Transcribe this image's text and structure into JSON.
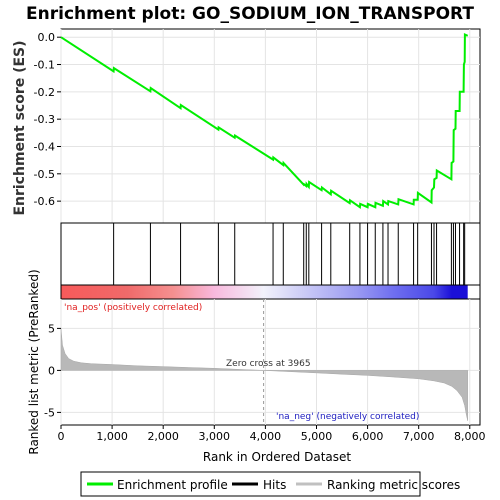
{
  "chart_data": {
    "type": "line",
    "title": "Enrichment plot: GO_SODIUM_ION_TRANSPORT",
    "ylabel_top": "Enrichment score (ES)",
    "ylabel_bottom": "Ranked list metric (PreRanked)",
    "xlabel": "Rank in Ordered Dataset",
    "xlim": [
      0,
      8200
    ],
    "xticks": [
      0,
      1000,
      2000,
      3000,
      4000,
      5000,
      6000,
      7000,
      8000
    ],
    "xtick_labels": [
      "0",
      "1,000",
      "2,000",
      "3,000",
      "4,000",
      "5,000",
      "6,000",
      "7,000",
      "8,000"
    ],
    "es_ylim": [
      -0.68,
      0.03
    ],
    "es_yticks": [
      0.0,
      -0.1,
      -0.2,
      -0.3,
      -0.4,
      -0.5,
      -0.6
    ],
    "es_ytick_labels": [
      "0.0",
      "-0.1",
      "-0.2",
      "-0.3",
      "-0.4",
      "-0.5",
      "-0.6"
    ],
    "metric_ylim": [
      -6.5,
      8.5
    ],
    "metric_yticks": [
      5,
      0,
      -5
    ],
    "metric_ytick_labels": [
      "5",
      "0",
      "-5"
    ],
    "zero_cross_label": "Zero cross at 3965",
    "zero_cross": 3965,
    "pos_label": "'na_pos' (positively correlated)",
    "neg_label": "'na_neg' (negatively correlated)",
    "total_ranks": 7960,
    "series": [
      {
        "name": "Enrichment profile",
        "color": "#00ee00",
        "x": [
          0,
          1030,
          1035,
          1750,
          1755,
          2340,
          2345,
          3080,
          3085,
          3400,
          3405,
          4150,
          4155,
          4350,
          4355,
          4750,
          4755,
          4800,
          4805,
          4850,
          4855,
          5100,
          5105,
          5280,
          5285,
          5650,
          5655,
          5850,
          5855,
          6000,
          6005,
          6150,
          6155,
          6300,
          6305,
          6400,
          6405,
          6600,
          6605,
          6900,
          6905,
          6980,
          6985,
          7250,
          7255,
          7300,
          7305,
          7350,
          7355,
          7640,
          7645,
          7680,
          7685,
          7720,
          7725,
          7800,
          7805,
          7880,
          7885,
          7900,
          7905,
          7960
        ],
        "y": [
          0.0,
          -0.125,
          -0.113,
          -0.198,
          -0.186,
          -0.26,
          -0.248,
          -0.338,
          -0.33,
          -0.368,
          -0.36,
          -0.448,
          -0.44,
          -0.468,
          -0.46,
          -0.54,
          -0.538,
          -0.545,
          -0.537,
          -0.548,
          -0.53,
          -0.56,
          -0.55,
          -0.575,
          -0.562,
          -0.607,
          -0.597,
          -0.622,
          -0.61,
          -0.622,
          -0.61,
          -0.622,
          -0.606,
          -0.617,
          -0.6,
          -0.612,
          -0.6,
          -0.612,
          -0.593,
          -0.612,
          -0.595,
          -0.595,
          -0.57,
          -0.605,
          -0.56,
          -0.55,
          -0.52,
          -0.515,
          -0.488,
          -0.52,
          -0.46,
          -0.455,
          -0.34,
          -0.335,
          -0.27,
          -0.27,
          -0.2,
          -0.2,
          -0.1,
          -0.09,
          0.01,
          0.005
        ]
      }
    ],
    "hits": [
      1030,
      1750,
      2340,
      3080,
      3400,
      4150,
      4350,
      4750,
      4800,
      4850,
      5100,
      5280,
      5650,
      5850,
      6000,
      6150,
      6300,
      6400,
      6600,
      6900,
      6980,
      7250,
      7300,
      7350,
      7640,
      7680,
      7720,
      7800,
      7880,
      7900
    ],
    "metric_profile": {
      "x": [
        0,
        30,
        80,
        150,
        250,
        400,
        600,
        1000,
        1500,
        2000,
        2500,
        3000,
        3500,
        3965,
        4500,
        5000,
        5500,
        6000,
        6500,
        7000,
        7300,
        7500,
        7650,
        7750,
        7850,
        7900,
        7930,
        7960
      ],
      "y": [
        5.0,
        3.0,
        2.0,
        1.4,
        1.1,
        0.9,
        0.8,
        0.7,
        0.55,
        0.45,
        0.35,
        0.25,
        0.12,
        0.0,
        -0.15,
        -0.3,
        -0.45,
        -0.6,
        -0.78,
        -1.0,
        -1.25,
        -1.5,
        -1.9,
        -2.4,
        -3.2,
        -4.2,
        -5.2,
        -6.0
      ]
    },
    "colorbar": {
      "stops": [
        {
          "x": 0,
          "color": "#f85a5a"
        },
        {
          "x": 1300,
          "color": "#f06a6a"
        },
        {
          "x": 2200,
          "color": "#f59090"
        },
        {
          "x": 3000,
          "color": "#f8b9dd"
        },
        {
          "x": 3965,
          "color": "#f2f2fb"
        },
        {
          "x": 4800,
          "color": "#c9c9f6"
        },
        {
          "x": 5800,
          "color": "#9a9af2"
        },
        {
          "x": 6500,
          "color": "#6f6ff0"
        },
        {
          "x": 7300,
          "color": "#4a48e8"
        },
        {
          "x": 7650,
          "color": "#1b10d8"
        },
        {
          "x": 7960,
          "color": "#1b10d8"
        }
      ]
    },
    "legend": {
      "items": [
        {
          "label": "Enrichment profile",
          "color": "#00ee00"
        },
        {
          "label": "Hits",
          "color": "#000000"
        },
        {
          "label": "Ranking metric scores",
          "color": "#c0c0c0"
        }
      ]
    }
  }
}
